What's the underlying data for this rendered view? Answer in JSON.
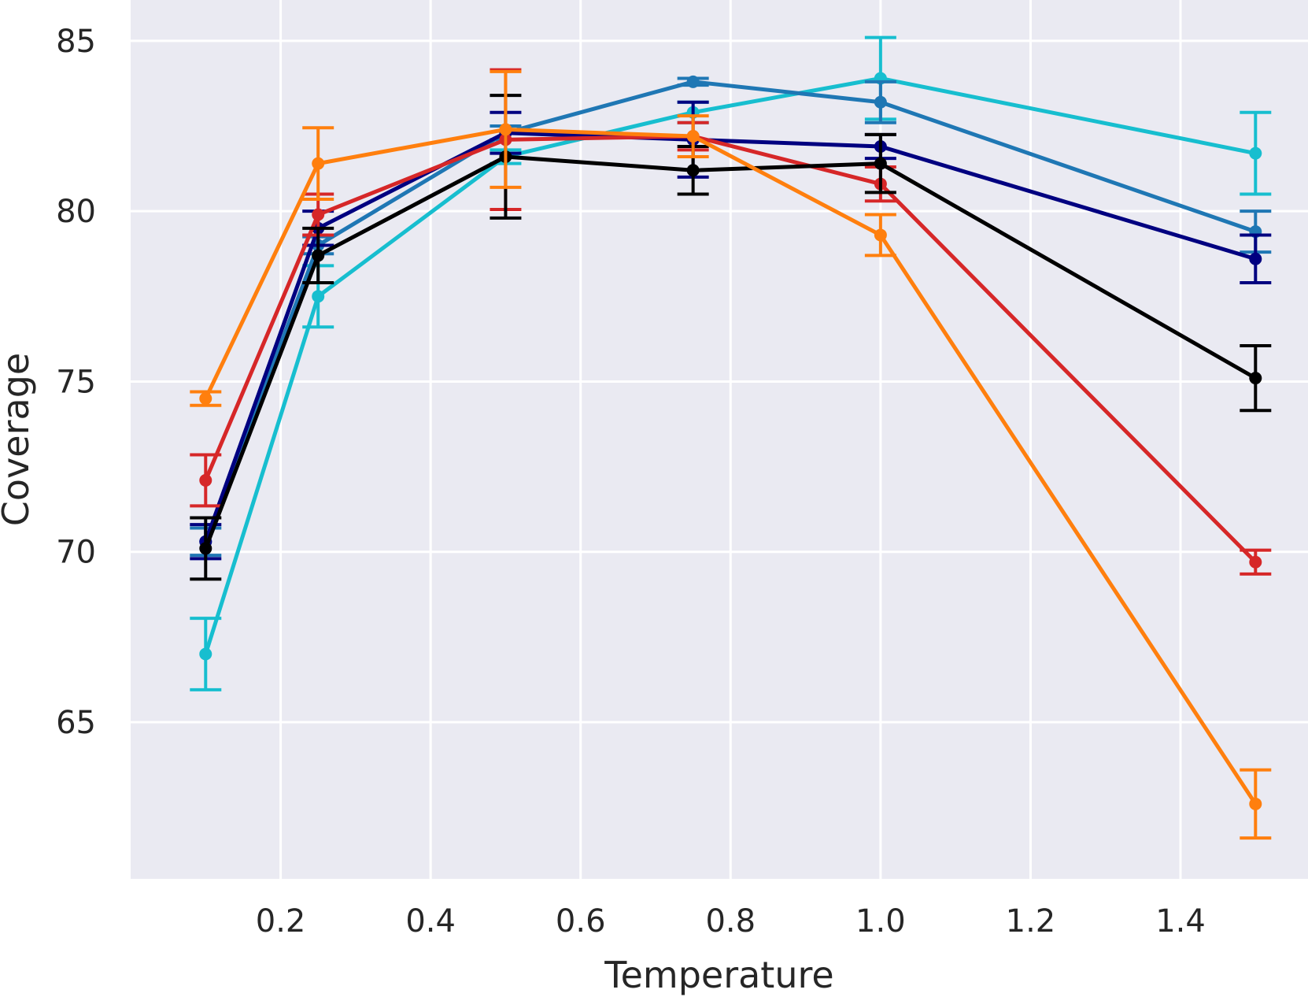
{
  "chart_data": {
    "type": "line",
    "title": "",
    "xlabel": "Temperature",
    "ylabel": "Coverage",
    "xlim": [
      0.0,
      1.57
    ],
    "ylim": [
      60.4,
      86.2
    ],
    "x_ticks": [
      0.2,
      0.4,
      0.6,
      0.8,
      1.0,
      1.2,
      1.4
    ],
    "x_tick_labels": [
      "0.2",
      "0.4",
      "0.6",
      "0.8",
      "1.0",
      "1.2",
      "1.4"
    ],
    "y_ticks": [
      65,
      70,
      75,
      80,
      85
    ],
    "y_tick_labels": [
      "65",
      "70",
      "75",
      "80",
      "85"
    ],
    "grid": true,
    "background": "#eaeaf2",
    "x": [
      0.1,
      0.25,
      0.5,
      0.75,
      1.0,
      1.5
    ],
    "series": [
      {
        "name": "cyan",
        "color": "#17becf",
        "values": [
          67.0,
          77.5,
          81.6,
          82.9,
          83.9,
          81.7
        ],
        "errors": [
          1.05,
          0.9,
          0.2,
          0.3,
          1.2,
          1.2
        ]
      },
      {
        "name": "blue",
        "color": "#1f77b4",
        "values": [
          70.3,
          79.0,
          82.3,
          83.8,
          83.2,
          79.4
        ],
        "errors": [
          0.4,
          0.25,
          0.2,
          0.1,
          0.6,
          0.6
        ]
      },
      {
        "name": "navy",
        "color": "#000080",
        "values": [
          70.3,
          79.5,
          82.3,
          82.1,
          81.9,
          78.6
        ],
        "errors": [
          0.5,
          0.5,
          0.6,
          1.1,
          0.35,
          0.7
        ]
      },
      {
        "name": "red",
        "color": "#d62728",
        "values": [
          72.1,
          79.9,
          82.1,
          82.2,
          80.8,
          69.7
        ],
        "errors": [
          0.75,
          0.6,
          2.05,
          0.4,
          0.5,
          0.35
        ]
      },
      {
        "name": "black",
        "color": "#000000",
        "values": [
          70.1,
          78.7,
          81.6,
          81.2,
          81.4,
          75.1
        ],
        "errors": [
          0.9,
          0.8,
          1.8,
          0.7,
          0.85,
          0.95
        ]
      },
      {
        "name": "orange",
        "color": "#ff7f0e",
        "values": [
          74.5,
          81.4,
          82.4,
          82.2,
          79.3,
          62.6
        ],
        "errors": [
          0.2,
          1.05,
          1.7,
          0.6,
          0.6,
          1.0
        ]
      }
    ]
  }
}
